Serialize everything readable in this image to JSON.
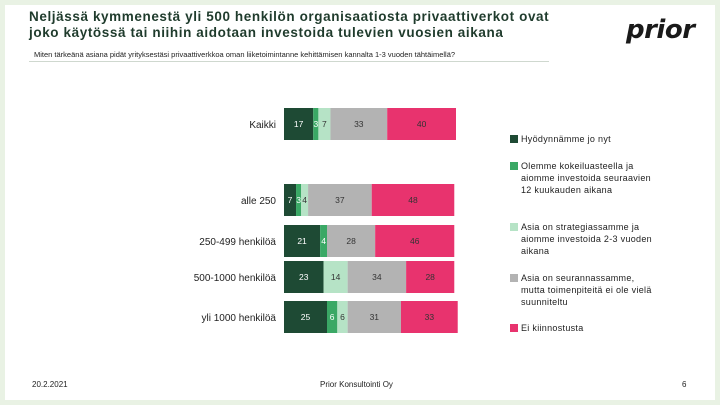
{
  "header": {
    "title": "Neljässä kymmenestä yli 500 henkilön organisaatiosta privaattiverkot ovat\njoko käytössä tai niihin aidotaan investoida tulevien vuosien aikana",
    "logo": "prior",
    "question": "Miten tärkeänä asiana pidät yrityksestäsi privaattiverkkoa oman liiketoimintanne kehittämisen kannalta 1-3 vuoden tähtäimellä?"
  },
  "chart_data": {
    "type": "bar",
    "orientation": "horizontal",
    "stacked": true,
    "categories": [
      "Kaikki",
      "alle 250",
      "250-499 henkilöä",
      "500-1000 henkilöä",
      "yli 1000 henkilöä"
    ],
    "series": [
      {
        "name": "Hyödynnämme jo nyt",
        "color": "#1e4a34",
        "values": [
          17,
          7,
          21,
          23,
          25
        ],
        "labels": [
          "17",
          "7",
          "21",
          "23",
          "25"
        ],
        "label_color": "#ffffff"
      },
      {
        "name": "Olemme kokeiluasteella ja aiomme investoida seuraavien 12 kuukauden aikana",
        "color": "#3aa865",
        "values": [
          3,
          3,
          4,
          0,
          6
        ],
        "labels": [
          "3",
          "3",
          "4",
          "",
          "6"
        ],
        "label_color": "#ffffff"
      },
      {
        "name": "Asia on strategiassamme ja aiomme investoida 2-3 vuoden aikana",
        "color": "#b6e3c6",
        "values": [
          7,
          4,
          0,
          14,
          6
        ],
        "labels": [
          "7",
          "4",
          "",
          "14",
          "6"
        ],
        "label_color": "#333333"
      },
      {
        "name": "Asia on seurannassamme, mutta toimenpiteitä ei ole vielä suunniteltu",
        "color": "#b3b3b3",
        "values": [
          33,
          37,
          28,
          34,
          31
        ],
        "labels": [
          "33",
          "37",
          "28",
          "34",
          "31"
        ],
        "label_color": "#333333"
      },
      {
        "name": "Ei kiinnostusta",
        "color": "#e8336e",
        "values": [
          40,
          48,
          46,
          28,
          33
        ],
        "labels": [
          "40",
          "48",
          "46",
          "28",
          "33"
        ],
        "label_color": "#333333"
      }
    ],
    "xlim": [
      0,
      100
    ],
    "legend_position": "right"
  },
  "footer": {
    "date": "20.2.2021",
    "company": "Prior Konsultointi Oy",
    "page": "6"
  }
}
